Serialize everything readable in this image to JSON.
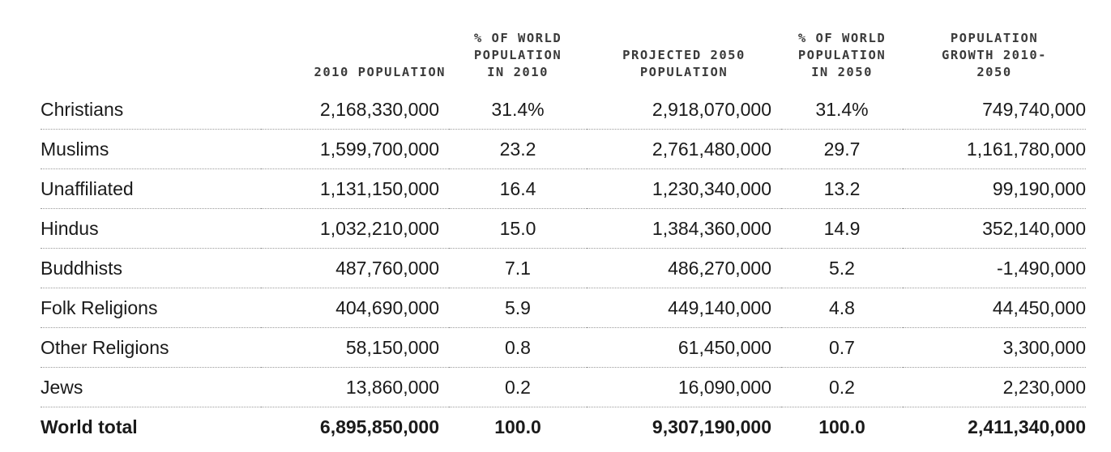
{
  "chart_data": {
    "type": "table",
    "columns": [
      "",
      "2010 POPULATION",
      "% OF WORLD POPULATION IN 2010",
      "PROJECTED 2050 POPULATION",
      "% OF WORLD POPULATION IN 2050",
      "POPULATION GROWTH 2010-2050"
    ],
    "header_lines": {
      "pop2010": [
        "2010 POPULATION"
      ],
      "pct2010": [
        "% OF WORLD",
        "POPULATION",
        "IN 2010"
      ],
      "pop2050": [
        "PROJECTED 2050",
        "POPULATION"
      ],
      "pct2050": [
        "% OF WORLD",
        "POPULATION",
        "IN 2050"
      ],
      "growth": [
        "POPULATION",
        "GROWTH 2010-",
        "2050"
      ]
    },
    "rows": [
      {
        "label": "Christians",
        "pop2010": "2,168,330,000",
        "pct2010": "31.4%",
        "pop2050": "2,918,070,000",
        "pct2050": "31.4%",
        "growth": "749,740,000"
      },
      {
        "label": "Muslims",
        "pop2010": "1,599,700,000",
        "pct2010": "23.2",
        "pop2050": "2,761,480,000",
        "pct2050": "29.7",
        "growth": "1,161,780,000"
      },
      {
        "label": "Unaffiliated",
        "pop2010": "1,131,150,000",
        "pct2010": "16.4",
        "pop2050": "1,230,340,000",
        "pct2050": "13.2",
        "growth": "99,190,000"
      },
      {
        "label": "Hindus",
        "pop2010": "1,032,210,000",
        "pct2010": "15.0",
        "pop2050": "1,384,360,000",
        "pct2050": "14.9",
        "growth": "352,140,000"
      },
      {
        "label": "Buddhists",
        "pop2010": "487,760,000",
        "pct2010": "7.1",
        "pop2050": "486,270,000",
        "pct2050": "5.2",
        "growth": "-1,490,000"
      },
      {
        "label": "Folk Religions",
        "pop2010": "404,690,000",
        "pct2010": "5.9",
        "pop2050": "449,140,000",
        "pct2050": "4.8",
        "growth": "44,450,000"
      },
      {
        "label": "Other Religions",
        "pop2010": "58,150,000",
        "pct2010": "0.8",
        "pop2050": "61,450,000",
        "pct2050": "0.7",
        "growth": "3,300,000"
      },
      {
        "label": "Jews",
        "pop2010": "13,860,000",
        "pct2010": "0.2",
        "pop2050": "16,090,000",
        "pct2050": "0.2",
        "growth": "2,230,000"
      }
    ],
    "total": {
      "label": "World total",
      "pop2010": "6,895,850,000",
      "pct2010": "100.0",
      "pop2050": "9,307,190,000",
      "pct2050": "100.0",
      "growth": "2,411,340,000"
    }
  }
}
